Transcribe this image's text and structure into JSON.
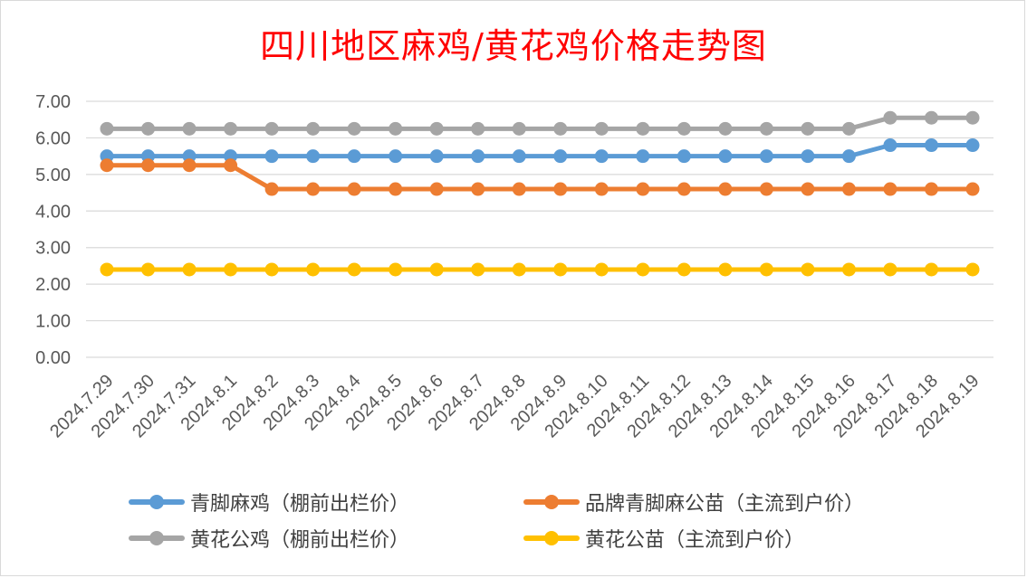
{
  "chart_data": {
    "type": "line",
    "title": "四川地区麻鸡/黄花鸡价格走势图",
    "xlabel": "",
    "ylabel": "",
    "ylim": [
      0,
      7
    ],
    "yticks": [
      "0.00",
      "1.00",
      "2.00",
      "3.00",
      "4.00",
      "5.00",
      "6.00",
      "7.00"
    ],
    "grid": true,
    "legend_position": "bottom",
    "categories": [
      "2024.7.29",
      "2024.7.30",
      "2024.7.31",
      "2024.8.1",
      "2024.8.2",
      "2024.8.3",
      "2024.8.4",
      "2024.8.5",
      "2024.8.6",
      "2024.8.7",
      "2024.8.8",
      "2024.8.9",
      "2024.8.10",
      "2024.8.11",
      "2024.8.12",
      "2024.8.13",
      "2024.8.14",
      "2024.8.15",
      "2024.8.16",
      "2024.8.17",
      "2024.8.18",
      "2024.8.19"
    ],
    "series": [
      {
        "name": "青脚麻鸡（棚前出栏价）",
        "color": "#5b9bd5",
        "values": [
          5.5,
          5.5,
          5.5,
          5.5,
          5.5,
          5.5,
          5.5,
          5.5,
          5.5,
          5.5,
          5.5,
          5.5,
          5.5,
          5.5,
          5.5,
          5.5,
          5.5,
          5.5,
          5.5,
          5.8,
          5.8,
          5.8
        ]
      },
      {
        "name": "品牌青脚麻公苗（主流到户价）",
        "color": "#ed7d31",
        "values": [
          5.25,
          5.25,
          5.25,
          5.25,
          4.6,
          4.6,
          4.6,
          4.6,
          4.6,
          4.6,
          4.6,
          4.6,
          4.6,
          4.6,
          4.6,
          4.6,
          4.6,
          4.6,
          4.6,
          4.6,
          4.6,
          4.6
        ]
      },
      {
        "name": "黄花公鸡（棚前出栏价）",
        "color": "#a5a5a5",
        "values": [
          6.25,
          6.25,
          6.25,
          6.25,
          6.25,
          6.25,
          6.25,
          6.25,
          6.25,
          6.25,
          6.25,
          6.25,
          6.25,
          6.25,
          6.25,
          6.25,
          6.25,
          6.25,
          6.25,
          6.55,
          6.55,
          6.55
        ]
      },
      {
        "name": "黄花公苗（主流到户价）",
        "color": "#ffc000",
        "values": [
          2.4,
          2.4,
          2.4,
          2.4,
          2.4,
          2.4,
          2.4,
          2.4,
          2.4,
          2.4,
          2.4,
          2.4,
          2.4,
          2.4,
          2.4,
          2.4,
          2.4,
          2.4,
          2.4,
          2.4,
          2.4,
          2.4
        ]
      }
    ]
  }
}
